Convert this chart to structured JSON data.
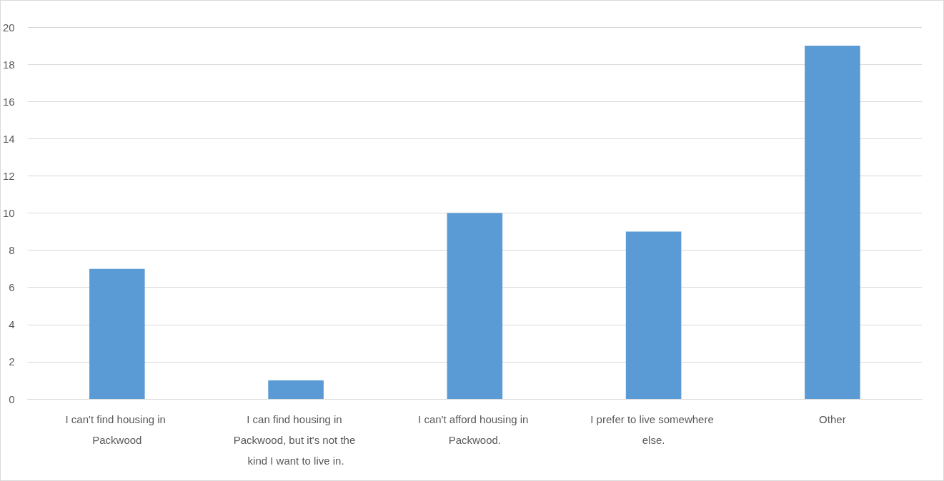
{
  "chart_data": {
    "type": "bar",
    "categories": [
      "I can't find housing in Packwood",
      "I can find housing in Packwood, but it's not the kind I want to live in.",
      "I can't afford housing in Packwood.",
      "I prefer to live somewhere else.",
      "Other"
    ],
    "values": [
      7,
      1,
      10,
      9,
      19
    ],
    "color": "#5b9bd5",
    "ylim": [
      0,
      20
    ],
    "yticks": [
      0,
      2,
      4,
      6,
      8,
      10,
      12,
      14,
      16,
      18,
      20
    ],
    "grid": "y"
  }
}
